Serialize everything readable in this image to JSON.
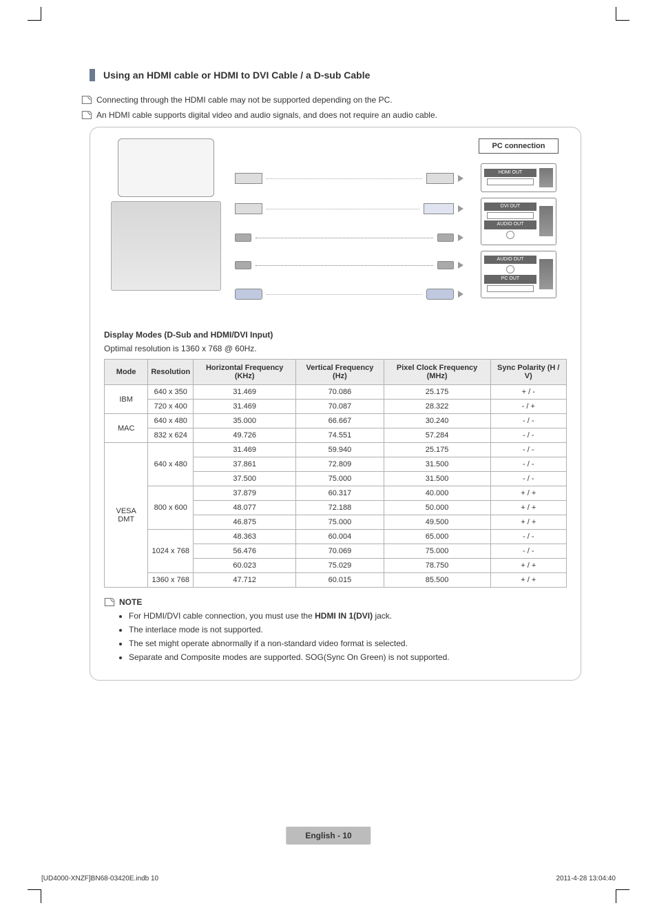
{
  "section_title": "Using an HDMI cable or HDMI to DVI Cable / a D-sub Cable",
  "notes_top": [
    "Connecting through the HDMI cable may not be supported depending on the PC.",
    "An HDMI cable supports digital video and audio signals, and does not require an audio cable."
  ],
  "diagram": {
    "pc_connection_label": "PC connection",
    "ports": [
      {
        "label1": "HDMI OUT"
      },
      {
        "label1": "DVI OUT",
        "label2": "AUDIO OUT"
      },
      {
        "label1": "AUDIO OUT",
        "label2": "PC OUT"
      }
    ]
  },
  "display_modes": {
    "heading": "Display Modes (D-Sub and HDMI/DVI Input)",
    "optimal": "Optimal resolution is 1360 x 768 @ 60Hz.",
    "headers": [
      "Mode",
      "Resolution",
      "Horizontal Frequency (KHz)",
      "Vertical Frequency (Hz)",
      "Pixel Clock Frequency (MHz)",
      "Sync Polarity (H / V)"
    ],
    "groups": [
      {
        "mode": "IBM",
        "rows": [
          [
            "640 x 350",
            "31.469",
            "70.086",
            "25.175",
            "+ / -"
          ],
          [
            "720 x 400",
            "31.469",
            "70.087",
            "28.322",
            "- / +"
          ]
        ]
      },
      {
        "mode": "MAC",
        "rows": [
          [
            "640 x 480",
            "35.000",
            "66.667",
            "30.240",
            "- / -"
          ],
          [
            "832 x 624",
            "49.726",
            "74.551",
            "57.284",
            "- / -"
          ]
        ]
      },
      {
        "mode": "VESA DMT",
        "subgroups": [
          {
            "res": "640 x 480",
            "rows": [
              [
                "31.469",
                "59.940",
                "25.175",
                "- / -"
              ],
              [
                "37.861",
                "72.809",
                "31.500",
                "- / -"
              ],
              [
                "37.500",
                "75.000",
                "31.500",
                "- / -"
              ]
            ]
          },
          {
            "res": "800 x 600",
            "rows": [
              [
                "37.879",
                "60.317",
                "40.000",
                "+ / +"
              ],
              [
                "48.077",
                "72.188",
                "50.000",
                "+ / +"
              ],
              [
                "46.875",
                "75.000",
                "49.500",
                "+ / +"
              ]
            ]
          },
          {
            "res": "1024 x 768",
            "rows": [
              [
                "48.363",
                "60.004",
                "65.000",
                "- / -"
              ],
              [
                "56.476",
                "70.069",
                "75.000",
                "- / -"
              ],
              [
                "60.023",
                "75.029",
                "78.750",
                "+ / +"
              ]
            ]
          },
          {
            "res": "1360 x 768",
            "rows": [
              [
                "47.712",
                "60.015",
                "85.500",
                "+ / +"
              ]
            ]
          }
        ]
      }
    ]
  },
  "note_block": {
    "title": "NOTE",
    "items_pre": [
      "For HDMI/DVI cable connection, you must use the "
    ],
    "items_bold": "HDMI IN 1(DVI)",
    "items_post": [
      " jack."
    ],
    "items": [
      "The interlace mode is not supported.",
      "The set might operate abnormally if a non-standard video format is selected.",
      "Separate and Composite modes are supported. SOG(Sync On Green) is not supported."
    ]
  },
  "page_label": "English - 10",
  "footer_left": "[UD4000-XNZF]BN68-03420E.indb   10",
  "footer_right": "2011-4-28   13:04:40",
  "colors": {
    "section_bar": "#6b7a8f",
    "card_border": "#c0c0c0",
    "table_border": "#b0b0b0",
    "table_header_bg": "#ebebeb",
    "pagebar_bg": "#bcbcbc"
  }
}
